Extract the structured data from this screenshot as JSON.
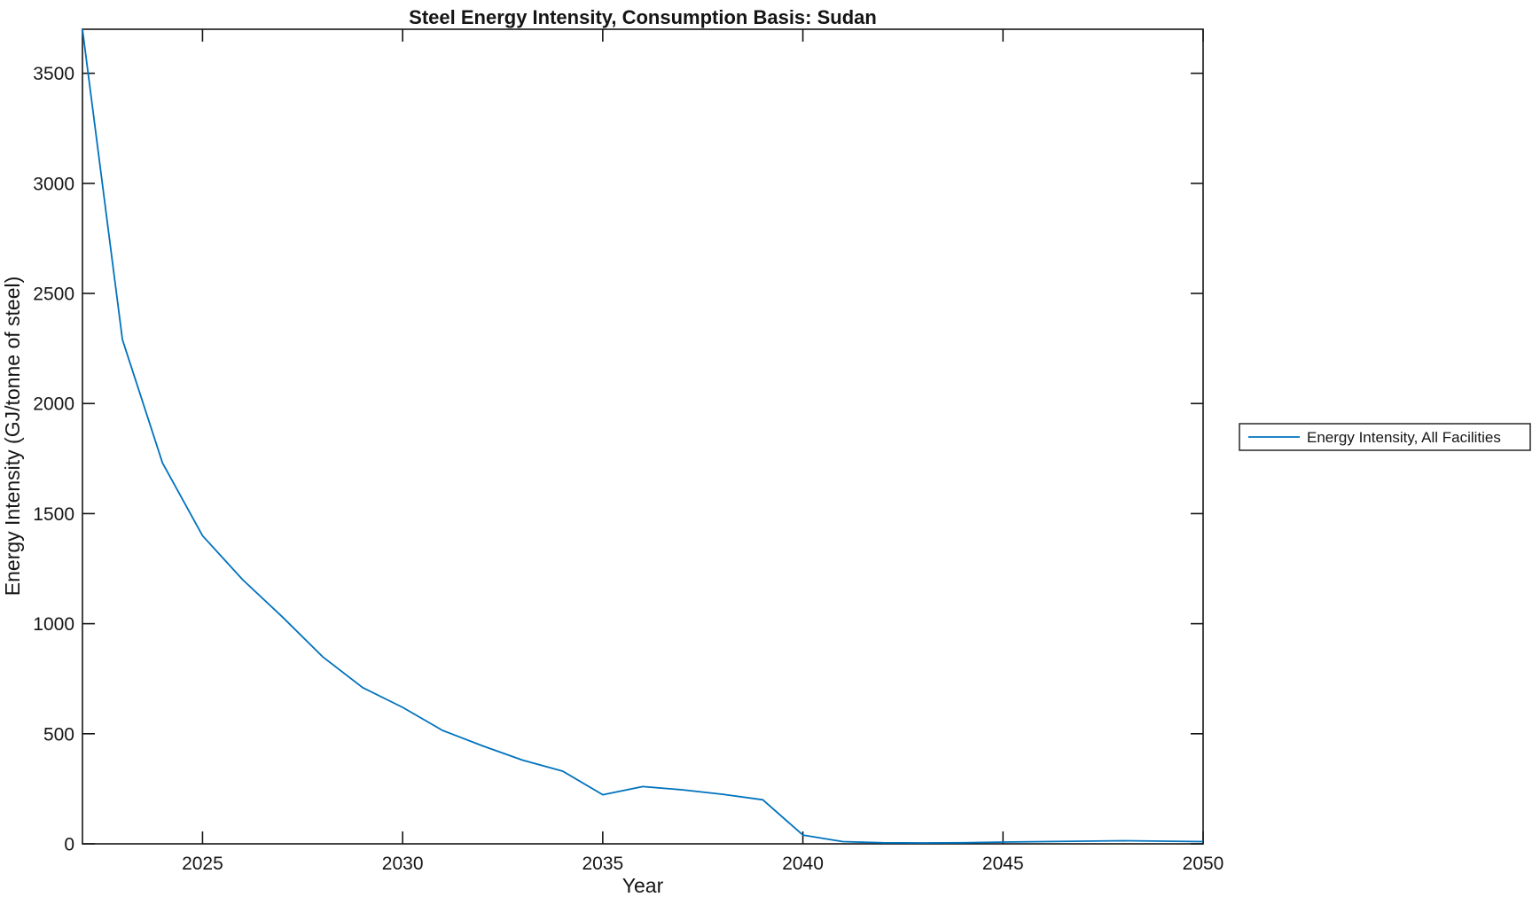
{
  "figure": {
    "background": "#ffffff",
    "axis_color": "#151515",
    "accent_color": "#0072BD"
  },
  "chart_data": {
    "type": "line",
    "title": "Steel Energy Intensity, Consumption Basis: Sudan",
    "xlabel": "Year",
    "ylabel": "Energy Intensity (GJ/tonne of steel)",
    "xlim": [
      2022,
      2050
    ],
    "ylim": [
      0,
      3700
    ],
    "x_ticks": [
      2025,
      2030,
      2035,
      2040,
      2045,
      2050
    ],
    "y_ticks": [
      0,
      500,
      1000,
      1500,
      2000,
      2500,
      3000,
      3500
    ],
    "grid": false,
    "legend": {
      "position": "outside-right",
      "entries": [
        {
          "label": "Energy Intensity, All Facilities",
          "color": "#0072BD"
        }
      ]
    },
    "series": [
      {
        "name": "Energy Intensity, All Facilities",
        "color": "#0072BD",
        "x": [
          2022,
          2023,
          2024,
          2025,
          2026,
          2027,
          2028,
          2029,
          2030,
          2031,
          2032,
          2033,
          2034,
          2035,
          2036,
          2037,
          2038,
          2039,
          2040,
          2041,
          2042,
          2043,
          2044,
          2045,
          2046,
          2047,
          2048,
          2049,
          2050
        ],
        "y": [
          3700,
          2290,
          1730,
          1400,
          1200,
          1030,
          850,
          710,
          620,
          515,
          445,
          380,
          330,
          223,
          260,
          245,
          225,
          200,
          40,
          10,
          5,
          4,
          5,
          8,
          10,
          12,
          14,
          12,
          10
        ]
      }
    ]
  }
}
